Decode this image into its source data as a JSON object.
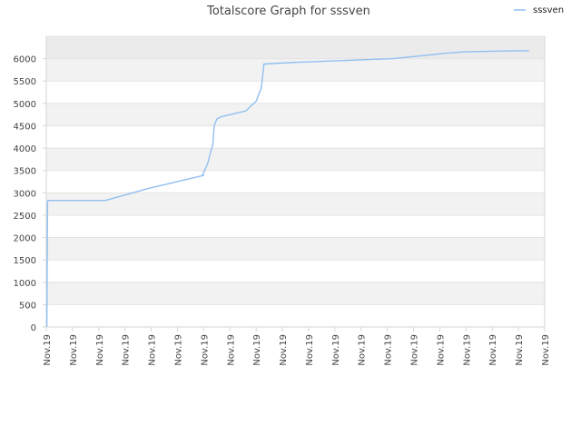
{
  "chart_data": {
    "type": "line",
    "title": "Totalscore Graph for sssven",
    "legend": {
      "position": "top-right",
      "entries": [
        "sssven"
      ]
    },
    "colors": {
      "line": "#90c0f0",
      "band_alt": "#f2f2f2",
      "band_top": "#ebebeb",
      "grid": "#e3e3e3",
      "axis": "#d6d6d6"
    },
    "ylim": [
      0,
      6500
    ],
    "yticks": [
      0,
      500,
      1000,
      1500,
      2000,
      2500,
      3000,
      3500,
      4000,
      4500,
      5000,
      5500,
      6000
    ],
    "xlim": [
      0,
      19
    ],
    "xtick_labels": [
      "Nov.19",
      "Nov.19",
      "Nov.19",
      "Nov.19",
      "Nov.19",
      "Nov.19",
      "Nov.19",
      "Nov.19",
      "Nov.19",
      "Nov.19",
      "Nov.19",
      "Nov.19",
      "Nov.19",
      "Nov.19",
      "Nov.19",
      "Nov.19",
      "Nov.19",
      "Nov.19",
      "Nov.19",
      "Nov.19"
    ],
    "grid": true,
    "series": [
      {
        "name": "sssven",
        "x": [
          0.02,
          0.05,
          0.1,
          2.25,
          3.9,
          6.0,
          5.95,
          6.15,
          6.35,
          6.4,
          6.5,
          6.65,
          7.6,
          8.0,
          8.1,
          8.2,
          8.3,
          8.9,
          9.6,
          10.5,
          11.4,
          12.3,
          13.2,
          14.2,
          15.2,
          15.9,
          17.3,
          18.4
        ],
        "y": [
          0,
          2820,
          2830,
          2830,
          3100,
          3390,
          3390,
          3650,
          4100,
          4500,
          4650,
          4700,
          4830,
          5050,
          5200,
          5350,
          5880,
          5900,
          5920,
          5940,
          5960,
          5980,
          6000,
          6060,
          6120,
          6150,
          6170,
          6180
        ]
      }
    ]
  }
}
